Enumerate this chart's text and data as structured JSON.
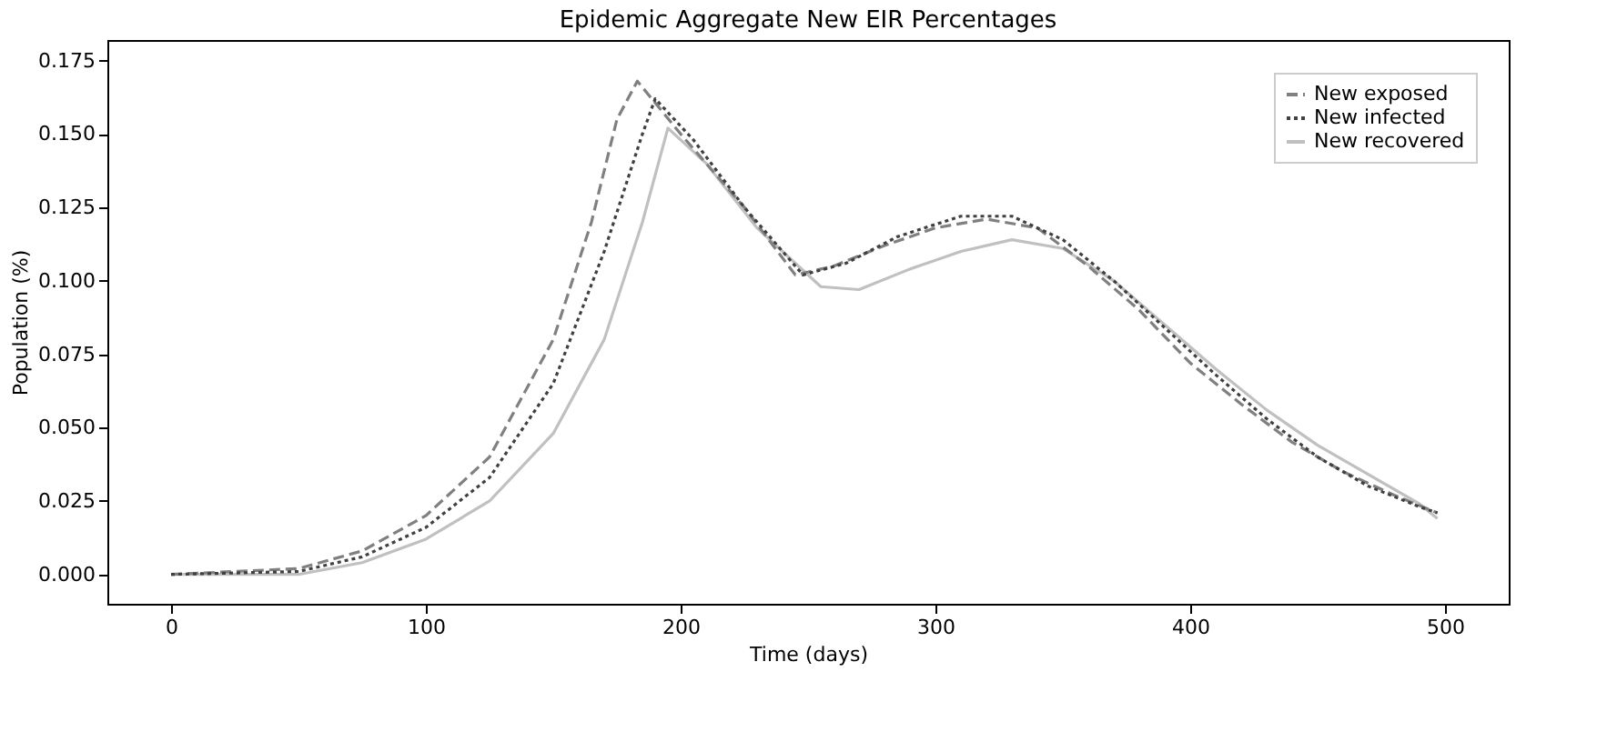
{
  "chart_data": {
    "type": "line",
    "title": "Epidemic Aggregate New EIR Percentages",
    "xlabel": "Time (days)",
    "ylabel": "Population (%)",
    "xlim": [
      -25,
      525
    ],
    "xticks": [
      0,
      100,
      200,
      300,
      400,
      500
    ],
    "ylim": [
      -0.01,
      0.182
    ],
    "yticks": [
      {
        "value": 0,
        "label": "0.000"
      },
      {
        "value": 0.025,
        "label": "0.025"
      },
      {
        "value": 0.05,
        "label": "0.050"
      },
      {
        "value": 0.075,
        "label": "0.075"
      },
      {
        "value": 0.1,
        "label": "0.100"
      },
      {
        "value": 0.125,
        "label": "0.125"
      },
      {
        "value": 0.15,
        "label": "0.150"
      },
      {
        "value": 0.175,
        "label": "0.175"
      }
    ],
    "grid": false,
    "legend": "top right",
    "marker": "none",
    "series": [
      {
        "name": "New exposed",
        "color": "#808080",
        "line_style": "dashed",
        "x": [
          0,
          50,
          75,
          100,
          125,
          150,
          165,
          175,
          183,
          200,
          225,
          245,
          260,
          280,
          300,
          320,
          340,
          360,
          380,
          400,
          420,
          440,
          460,
          480,
          497
        ],
        "values": [
          0,
          0.002,
          0.008,
          0.02,
          0.04,
          0.08,
          0.12,
          0.155,
          0.168,
          0.15,
          0.125,
          0.102,
          0.105,
          0.112,
          0.118,
          0.121,
          0.118,
          0.105,
          0.09,
          0.072,
          0.058,
          0.045,
          0.035,
          0.027,
          0.021
        ]
      },
      {
        "name": "New infected",
        "color": "#404040",
        "line_style": "dotted",
        "x": [
          0,
          50,
          75,
          100,
          125,
          150,
          170,
          185,
          190,
          205,
          225,
          248,
          265,
          285,
          310,
          330,
          350,
          370,
          390,
          410,
          430,
          450,
          470,
          490,
          497
        ],
        "values": [
          0,
          0.001,
          0.006,
          0.016,
          0.033,
          0.065,
          0.11,
          0.15,
          0.162,
          0.148,
          0.125,
          0.102,
          0.106,
          0.115,
          0.122,
          0.122,
          0.114,
          0.1,
          0.084,
          0.068,
          0.053,
          0.04,
          0.03,
          0.023,
          0.021
        ]
      },
      {
        "name": "New recovered",
        "color": "#c0c0c0",
        "line_style": "solid",
        "x": [
          0,
          50,
          75,
          100,
          125,
          150,
          170,
          185,
          195,
          210,
          230,
          255,
          270,
          290,
          310,
          330,
          350,
          370,
          390,
          410,
          430,
          450,
          470,
          490,
          497
        ],
        "values": [
          0,
          0,
          0.004,
          0.012,
          0.025,
          0.048,
          0.08,
          0.12,
          0.152,
          0.14,
          0.118,
          0.098,
          0.097,
          0.104,
          0.11,
          0.114,
          0.111,
          0.1,
          0.085,
          0.07,
          0.056,
          0.044,
          0.034,
          0.024,
          0.019
        ]
      }
    ]
  }
}
